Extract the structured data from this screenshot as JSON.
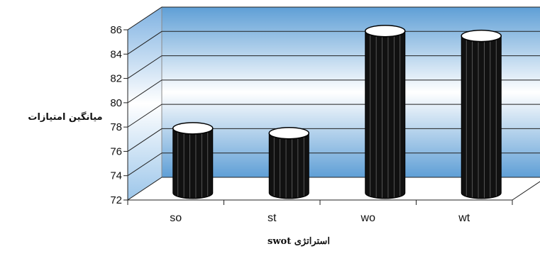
{
  "chart_data": {
    "type": "bar",
    "style": "3d-cylinder",
    "categories": [
      "so",
      "st",
      "wo",
      "wt"
    ],
    "values": [
      77.2,
      76.8,
      85.2,
      84.8
    ],
    "ylabel": "میانگین امتیازات",
    "xlabel": "استراتژی swot",
    "ylim": [
      72,
      86
    ],
    "yticks": [
      "72",
      "74",
      "76",
      "78",
      "80",
      "82",
      "84",
      "86"
    ],
    "grid": true,
    "legend": "none",
    "colors": {
      "bar": "#111111",
      "bar_highlight": "#ffffff",
      "back_wall_top": "#5f9fd6",
      "back_wall_mid": "#ffffff",
      "side_wall": "#9cc6ea",
      "grid": "#222222"
    }
  }
}
